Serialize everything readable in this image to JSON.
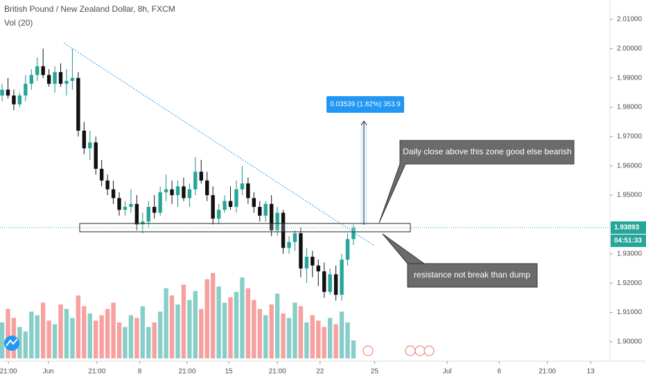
{
  "chart_data": {
    "type": "candlestick",
    "title": "British Pound / New Zealand Dollar, 8h, FXCM",
    "indicator": "Vol (20)",
    "open": [
      1.984,
      1.986,
      1.984,
      1.981,
      1.984,
      1.988,
      1.991,
      1.994,
      1.991,
      1.988,
      1.992,
      1.988,
      1.989,
      1.99,
      1.972,
      1.966,
      1.968,
      1.959,
      1.955,
      1.952,
      1.949,
      1.945,
      1.946,
      1.947,
      1.94,
      1.941,
      1.946,
      1.944,
      1.951,
      1.952,
      1.95,
      1.953,
      1.949,
      1.952,
      1.958,
      1.955,
      1.95,
      1.942,
      1.945,
      1.948,
      1.946,
      1.952,
      1.954,
      1.949,
      1.946,
      1.943,
      1.947,
      1.938,
      1.944,
      1.932,
      1.934,
      1.937,
      1.925,
      1.929,
      1.926,
      1.924,
      1.917,
      1.923,
      1.916,
      1.928,
      1.935
    ],
    "high": [
      1.988,
      1.99,
      1.986,
      1.985,
      1.991,
      1.993,
      1.997,
      2.0,
      1.993,
      1.994,
      1.995,
      1.993,
      2.0,
      1.992,
      1.975,
      1.972,
      1.97,
      1.962,
      1.957,
      1.955,
      1.951,
      1.948,
      1.952,
      1.95,
      1.944,
      1.948,
      1.95,
      1.953,
      1.957,
      1.955,
      1.955,
      1.956,
      1.954,
      1.963,
      1.962,
      1.958,
      1.953,
      1.947,
      1.95,
      1.953,
      1.955,
      1.96,
      1.956,
      1.951,
      1.948,
      1.948,
      1.95,
      1.946,
      1.945,
      1.936,
      1.938,
      1.939,
      1.932,
      1.931,
      1.928,
      1.927,
      1.925,
      1.926,
      1.93,
      1.937,
      1.94
    ],
    "low": [
      1.982,
      1.983,
      1.979,
      1.98,
      1.982,
      1.986,
      1.989,
      1.99,
      1.987,
      1.985,
      1.987,
      1.984,
      1.986,
      1.97,
      1.964,
      1.962,
      1.957,
      1.953,
      1.95,
      1.947,
      1.943,
      1.943,
      1.944,
      1.938,
      1.937,
      1.939,
      1.942,
      1.943,
      1.948,
      1.947,
      1.946,
      1.948,
      1.946,
      1.95,
      1.954,
      1.948,
      1.94,
      1.94,
      1.944,
      1.945,
      1.944,
      1.95,
      1.947,
      1.944,
      1.941,
      1.941,
      1.936,
      1.936,
      1.93,
      1.93,
      1.931,
      1.922,
      1.92,
      1.922,
      1.919,
      1.915,
      1.916,
      1.914,
      1.914,
      1.926,
      1.933
    ],
    "close": [
      1.986,
      1.984,
      1.981,
      1.984,
      1.988,
      1.991,
      1.994,
      1.991,
      1.988,
      1.992,
      1.988,
      1.989,
      1.99,
      1.972,
      1.966,
      1.968,
      1.959,
      1.955,
      1.952,
      1.949,
      1.945,
      1.946,
      1.947,
      1.94,
      1.941,
      1.946,
      1.944,
      1.951,
      1.952,
      1.95,
      1.953,
      1.949,
      1.952,
      1.958,
      1.955,
      1.95,
      1.942,
      1.945,
      1.948,
      1.946,
      1.952,
      1.954,
      1.949,
      1.946,
      1.943,
      1.947,
      1.938,
      1.944,
      1.932,
      1.934,
      1.937,
      1.925,
      1.929,
      1.926,
      1.924,
      1.917,
      1.923,
      1.916,
      1.928,
      1.935,
      1.939
    ],
    "volume": [
      40,
      55,
      45,
      35,
      30,
      52,
      48,
      62,
      42,
      38,
      60,
      55,
      45,
      70,
      58,
      50,
      42,
      48,
      55,
      62,
      40,
      35,
      48,
      45,
      58,
      35,
      40,
      52,
      78,
      70,
      60,
      82,
      65,
      75,
      55,
      88,
      95,
      80,
      62,
      68,
      74,
      90,
      78,
      65,
      55,
      48,
      60,
      72,
      50,
      45,
      62,
      58,
      40,
      48,
      42,
      35,
      45,
      38,
      52,
      40,
      20
    ],
    "vlim": [
      0,
      100
    ],
    "up_color": "#26a69a",
    "down_color": "#ef5350",
    "ylim": [
      1.8943,
      2.0166
    ],
    "yticks": [
      {
        "value": 1.9,
        "label": "1.90000"
      },
      {
        "value": 1.91,
        "label": "1.91000"
      },
      {
        "value": 1.92,
        "label": "1.92000"
      },
      {
        "value": 1.93,
        "label": "1.93000"
      },
      {
        "value": 1.95,
        "label": "1.95000"
      },
      {
        "value": 1.96,
        "label": "1.96000"
      },
      {
        "value": 1.97,
        "label": "1.97000"
      },
      {
        "value": 1.98,
        "label": "1.98000"
      },
      {
        "value": 1.99,
        "label": "1.99000"
      },
      {
        "value": 2.0,
        "label": "2.00000"
      },
      {
        "value": 2.01,
        "label": "2.01000"
      }
    ],
    "xlim": [
      -0.36,
      103.8
    ],
    "xticks": [
      {
        "value": 1.07,
        "label": "21:00"
      },
      {
        "value": 7.9,
        "label": "Jun"
      },
      {
        "value": 16.2,
        "label": "21:00"
      },
      {
        "value": 23.5,
        "label": "8"
      },
      {
        "value": 31.6,
        "label": "21:00"
      },
      {
        "value": 38.7,
        "label": "15"
      },
      {
        "value": 47,
        "label": "21:00"
      },
      {
        "value": 54.3,
        "label": "22"
      },
      {
        "value": 63.6,
        "label": "25"
      },
      {
        "value": 76,
        "label": "Jul"
      },
      {
        "value": 84.9,
        "label": "6"
      },
      {
        "value": 93.1,
        "label": "21:00"
      },
      {
        "value": 100.5,
        "label": "13"
      }
    ],
    "last_price": {
      "value": 1.93893,
      "label": "1.93893"
    },
    "countdown": "04:51:33",
    "measure_label": "0.03539 (1.82%) 353.9",
    "annotations": [
      "Daily close above this zone good else bearish",
      "resistance not break than dump"
    ]
  }
}
